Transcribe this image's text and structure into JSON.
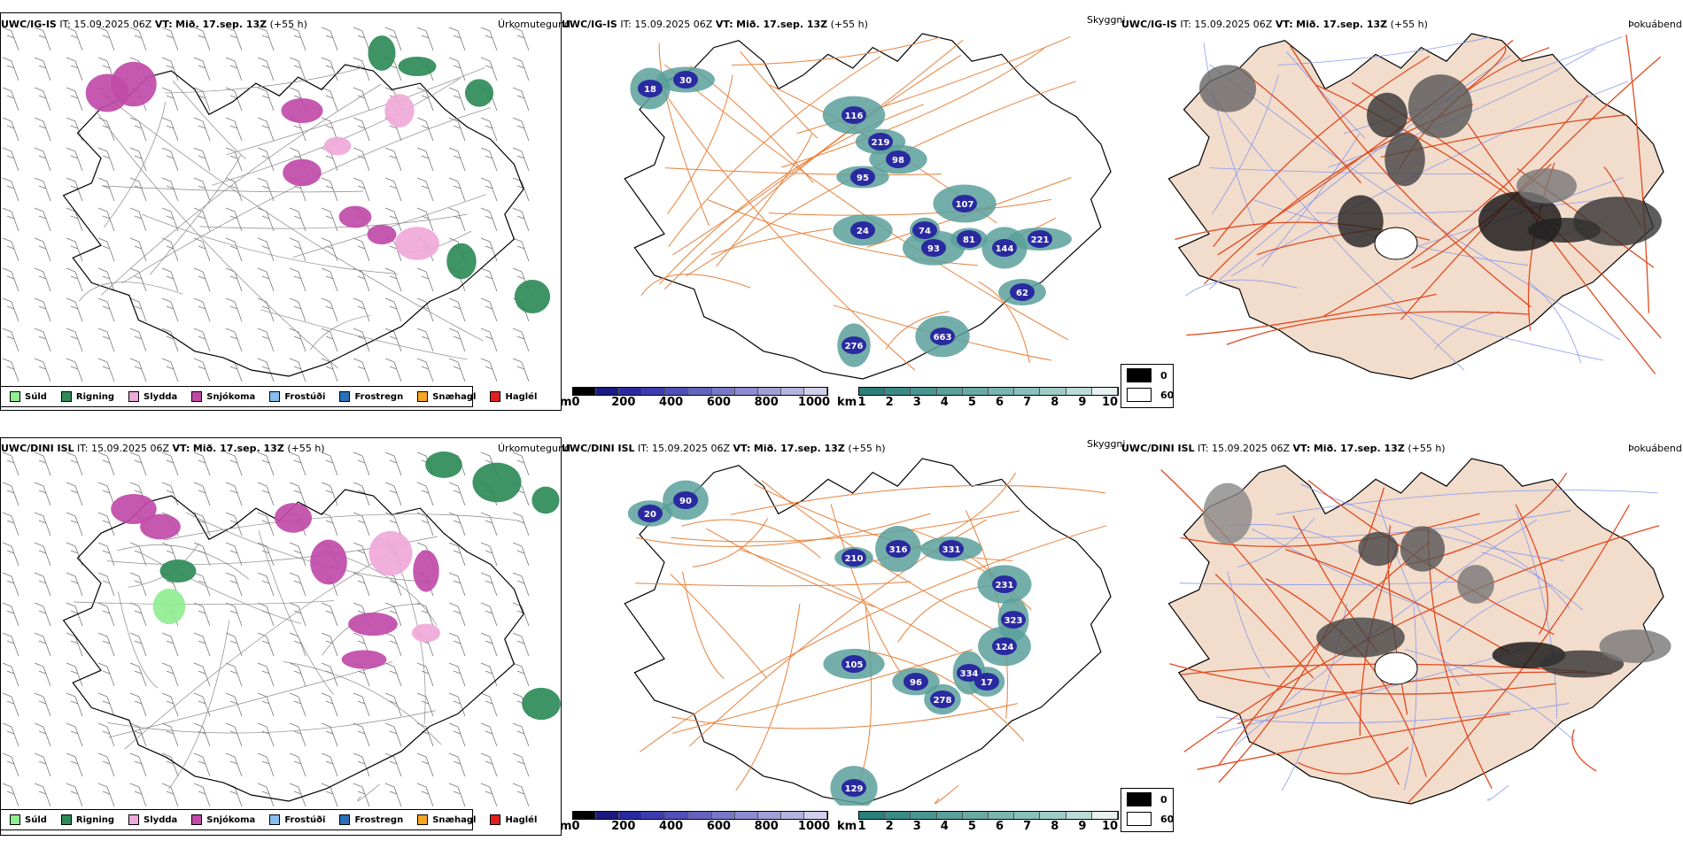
{
  "rows": [
    {
      "model": "UWC/IG-IS",
      "it_label": "IT:",
      "it_value": "15.09.2025 06Z",
      "vt_label": "VT:",
      "vt_value": "Mið. 17.sep. 13Z",
      "lead": "(+55 h)"
    },
    {
      "model": "UWC/DINI ISL",
      "it_label": "IT:",
      "it_value": "15.09.2025 06Z",
      "vt_label": "VT:",
      "vt_value": "Mið. 17.sep. 13Z",
      "lead": "(+55 h)"
    }
  ],
  "panel_titles": {
    "precip_type": "Úrkomutegund",
    "visibility": "Skyggni",
    "fog": "Þokuábendi"
  },
  "precip_legend": [
    {
      "label": "Súld",
      "color": "#90ee90"
    },
    {
      "label": "Rigning",
      "color": "#2e8b57"
    },
    {
      "label": "Slydda",
      "color": "#f0a8d8"
    },
    {
      "label": "Snjókoma",
      "color": "#c04aa8"
    },
    {
      "label": "Frostúði",
      "color": "#87bdf0"
    },
    {
      "label": "Frostregn",
      "color": "#2a6fb8"
    },
    {
      "label": "Snæhagl",
      "color": "#f5a623"
    },
    {
      "label": "Haglél",
      "color": "#e02020"
    }
  ],
  "ceiling_colorbar": {
    "unit": "m",
    "ticks": [
      "0",
      "200",
      "400",
      "600",
      "800",
      "1000"
    ],
    "colors": [
      "#000000",
      "#1a1a80",
      "#2a2aa0",
      "#3c3cb0",
      "#5050b8",
      "#6464c0",
      "#7878c8",
      "#8c8cd0",
      "#a0a0d8",
      "#b4b4e0",
      "#d0d0ec"
    ]
  },
  "visibility_colorbar": {
    "unit": "km",
    "ticks": [
      "1",
      "2",
      "3",
      "4",
      "5",
      "6",
      "7",
      "8",
      "9",
      "10"
    ],
    "colors": [
      "#2a7f7a",
      "#3a8a85",
      "#4a9590",
      "#5aa09b",
      "#6aaaa5",
      "#7ab5b0",
      "#8ac0bb",
      "#a0ccc8",
      "#bcdcd8",
      "#e6f2f0"
    ]
  },
  "fog_legend": [
    {
      "label": "0",
      "color": "#000000"
    },
    {
      "label": "60",
      "color": "#ffffff"
    }
  ],
  "ceiling_labels_row1": [
    "18",
    "30",
    "116",
    "219",
    "95",
    "98",
    "24",
    "93",
    "81",
    "144",
    "221",
    "62",
    "663",
    "276",
    "74",
    "107"
  ],
  "ceiling_labels_row2": [
    "20",
    "90",
    "210",
    "316",
    "331",
    "231",
    "323",
    "124",
    "105",
    "96",
    "334",
    "278",
    "17",
    "129"
  ],
  "colors": {
    "roads": "#e8803a",
    "fog_land": "#f2dccb",
    "fog_roads": "#e04a20",
    "rivers": "#8899ee",
    "coast": "#000000",
    "contour": "#888888"
  }
}
